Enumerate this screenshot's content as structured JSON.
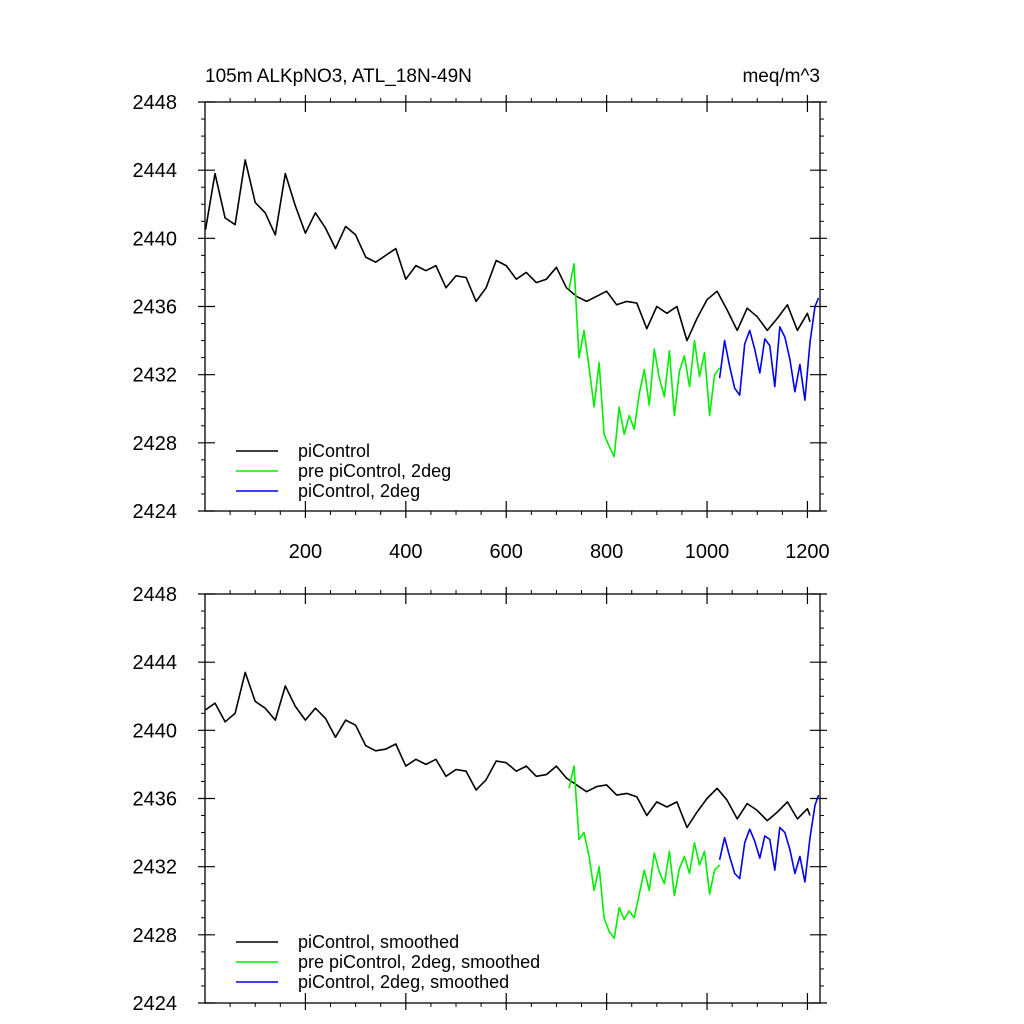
{
  "chart_data": [
    {
      "type": "line",
      "title": "105m ALKpNO3, ATL_18N-49N",
      "units": "meq/m^3",
      "xlim": [
        0,
        1225
      ],
      "ylim": [
        2424,
        2448
      ],
      "xticks": [
        200,
        400,
        600,
        800,
        1000,
        1200
      ],
      "xtick_labels": [
        "200",
        "400",
        "600",
        "800",
        "1000",
        "1200"
      ],
      "yticks": [
        2424,
        2428,
        2432,
        2436,
        2440,
        2444,
        2448
      ],
      "ytick_labels": [
        "2424",
        "2428",
        "2432",
        "2436",
        "2440",
        "2444",
        "2448"
      ],
      "legend_position": "bottom-left",
      "series": [
        {
          "name": "piControl",
          "color": "#000000",
          "x": [
            1,
            20,
            40,
            60,
            80,
            100,
            120,
            140,
            160,
            180,
            200,
            220,
            240,
            260,
            280,
            300,
            320,
            340,
            360,
            380,
            400,
            420,
            440,
            460,
            480,
            500,
            520,
            540,
            560,
            580,
            600,
            620,
            640,
            660,
            680,
            700,
            720,
            740,
            760,
            780,
            800,
            820,
            840,
            860,
            880,
            900,
            920,
            940,
            960,
            980,
            1000,
            1020,
            1040,
            1060,
            1080,
            1100,
            1120,
            1140,
            1160,
            1180,
            1200,
            1205
          ],
          "y": [
            2440.5,
            2443.8,
            2441.2,
            2440.8,
            2444.6,
            2442.1,
            2441.5,
            2440.2,
            2443.8,
            2441.9,
            2440.3,
            2441.5,
            2440.6,
            2439.4,
            2440.7,
            2440.2,
            2438.9,
            2438.6,
            2439.0,
            2439.4,
            2437.6,
            2438.4,
            2438.1,
            2438.4,
            2437.1,
            2437.8,
            2437.7,
            2436.3,
            2437.1,
            2438.7,
            2438.4,
            2437.6,
            2438.0,
            2437.4,
            2437.6,
            2438.3,
            2437.1,
            2436.6,
            2436.3,
            2436.6,
            2436.9,
            2436.1,
            2436.3,
            2436.2,
            2434.7,
            2436.0,
            2435.6,
            2436.0,
            2434.0,
            2435.3,
            2436.4,
            2436.9,
            2435.8,
            2434.6,
            2435.9,
            2435.4,
            2434.6,
            2435.3,
            2436.1,
            2434.6,
            2435.6,
            2435.1
          ]
        },
        {
          "name": "pre piControl, 2deg",
          "color": "#00ee00",
          "x": [
            725,
            735,
            745,
            755,
            765,
            775,
            785,
            795,
            805,
            815,
            825,
            835,
            845,
            855,
            865,
            875,
            885,
            895,
            905,
            915,
            925,
            935,
            945,
            955,
            965,
            975,
            985,
            995,
            1005,
            1015,
            1025
          ],
          "y": [
            2437.0,
            2438.5,
            2433.0,
            2434.6,
            2432.4,
            2430.1,
            2432.7,
            2428.5,
            2427.8,
            2427.2,
            2430.1,
            2428.5,
            2429.6,
            2428.8,
            2430.9,
            2432.3,
            2430.2,
            2433.5,
            2431.8,
            2430.7,
            2433.4,
            2429.6,
            2432.2,
            2433.1,
            2431.3,
            2434.0,
            2431.9,
            2433.3,
            2429.6,
            2432.0,
            2432.4
          ]
        },
        {
          "name": "piControl, 2deg",
          "color": "#0000ee",
          "x": [
            1025,
            1035,
            1045,
            1055,
            1065,
            1075,
            1085,
            1095,
            1105,
            1115,
            1125,
            1135,
            1145,
            1155,
            1165,
            1175,
            1185,
            1195,
            1205,
            1215,
            1222
          ],
          "y": [
            2431.8,
            2434.0,
            2432.5,
            2431.2,
            2430.8,
            2433.8,
            2434.6,
            2433.5,
            2432.1,
            2434.1,
            2433.7,
            2431.3,
            2434.8,
            2434.2,
            2432.9,
            2431.0,
            2432.6,
            2430.5,
            2433.9,
            2436.0,
            2436.5
          ]
        }
      ]
    },
    {
      "type": "line",
      "title": "",
      "xlim": [
        0,
        1225
      ],
      "ylim": [
        2424,
        2448
      ],
      "xticks": [
        200,
        400,
        600,
        800,
        1000,
        1200
      ],
      "yticks": [
        2424,
        2428,
        2432,
        2436,
        2440,
        2444,
        2448
      ],
      "ytick_labels": [
        "2424",
        "2428",
        "2432",
        "2436",
        "2440",
        "2444",
        "2448"
      ],
      "legend_position": "bottom-left",
      "series": [
        {
          "name": "piControl, smoothed",
          "color": "#000000",
          "x": [
            1,
            20,
            40,
            60,
            80,
            100,
            120,
            140,
            160,
            180,
            200,
            220,
            240,
            260,
            280,
            300,
            320,
            340,
            360,
            380,
            400,
            420,
            440,
            460,
            480,
            500,
            520,
            540,
            560,
            580,
            600,
            620,
            640,
            660,
            680,
            700,
            720,
            740,
            760,
            780,
            800,
            820,
            840,
            860,
            880,
            900,
            920,
            940,
            960,
            980,
            1000,
            1020,
            1040,
            1060,
            1080,
            1100,
            1120,
            1140,
            1160,
            1180,
            1200,
            1205
          ],
          "y": [
            2441.2,
            2441.6,
            2440.5,
            2441.0,
            2443.4,
            2441.7,
            2441.3,
            2440.6,
            2442.6,
            2441.4,
            2440.6,
            2441.3,
            2440.7,
            2439.6,
            2440.6,
            2440.3,
            2439.1,
            2438.8,
            2438.9,
            2439.2,
            2437.9,
            2438.3,
            2438.0,
            2438.3,
            2437.3,
            2437.7,
            2437.6,
            2436.5,
            2437.1,
            2438.2,
            2438.1,
            2437.6,
            2437.9,
            2437.3,
            2437.4,
            2437.9,
            2437.2,
            2436.8,
            2436.4,
            2436.7,
            2436.8,
            2436.2,
            2436.3,
            2436.1,
            2435.0,
            2435.8,
            2435.5,
            2435.8,
            2434.3,
            2435.2,
            2436.0,
            2436.6,
            2435.9,
            2434.8,
            2435.7,
            2435.3,
            2434.7,
            2435.2,
            2435.8,
            2434.8,
            2435.4,
            2435.0
          ]
        },
        {
          "name": "pre piControl, 2deg, smoothed",
          "color": "#00ee00",
          "x": [
            725,
            735,
            745,
            755,
            765,
            775,
            785,
            795,
            805,
            815,
            825,
            835,
            845,
            855,
            865,
            875,
            885,
            895,
            905,
            915,
            925,
            935,
            945,
            955,
            965,
            975,
            985,
            995,
            1005,
            1015,
            1025
          ],
          "y": [
            2436.6,
            2437.9,
            2433.6,
            2434.0,
            2432.6,
            2430.6,
            2432.0,
            2429.0,
            2428.2,
            2427.8,
            2429.6,
            2428.9,
            2429.4,
            2429.0,
            2430.4,
            2431.8,
            2430.6,
            2432.8,
            2431.7,
            2431.0,
            2432.9,
            2430.3,
            2431.9,
            2432.6,
            2431.6,
            2433.4,
            2432.1,
            2432.9,
            2430.4,
            2431.8,
            2432.1
          ]
        },
        {
          "name": "piControl, 2deg, smoothed",
          "color": "#0000ee",
          "x": [
            1025,
            1035,
            1045,
            1055,
            1065,
            1075,
            1085,
            1095,
            1105,
            1115,
            1125,
            1135,
            1145,
            1155,
            1165,
            1175,
            1185,
            1195,
            1205,
            1215,
            1222
          ],
          "y": [
            2432.4,
            2433.7,
            2432.6,
            2431.6,
            2431.3,
            2433.4,
            2434.2,
            2433.5,
            2432.5,
            2433.8,
            2433.6,
            2431.8,
            2434.3,
            2434.0,
            2433.0,
            2431.6,
            2432.6,
            2431.1,
            2433.7,
            2435.6,
            2436.2
          ]
        }
      ]
    }
  ]
}
